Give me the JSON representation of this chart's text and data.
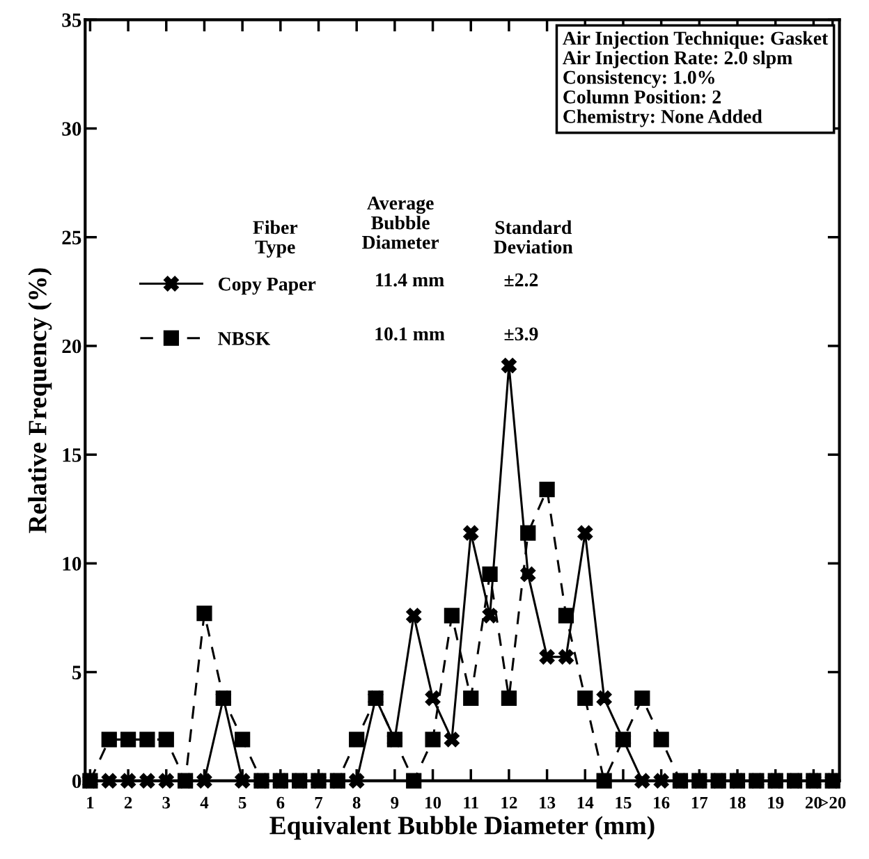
{
  "chart_data": {
    "type": "line",
    "xlabel": "Equivalent Bubble Diameter (mm)",
    "ylabel": "Relative Frequency (%)",
    "x": [
      1,
      1.5,
      2,
      2.5,
      3,
      3.5,
      4,
      4.5,
      5,
      5.5,
      6,
      6.5,
      7,
      7.5,
      8,
      8.5,
      9,
      9.5,
      10,
      10.5,
      11,
      11.5,
      12,
      12.5,
      13,
      13.5,
      14,
      14.5,
      15,
      15.5,
      16,
      16.5,
      17,
      17.5,
      18,
      18.5,
      19,
      19.5,
      20,
      20.5
    ],
    "series": [
      {
        "name": "Copy Paper",
        "color": "#000000",
        "marker": "cross",
        "line_style": "solid",
        "values": [
          0,
          0,
          0,
          0,
          0,
          0,
          0,
          3.8,
          0,
          0,
          0,
          0,
          0,
          0,
          0,
          3.8,
          1.9,
          7.6,
          3.8,
          1.9,
          11.4,
          7.6,
          19.1,
          9.5,
          5.7,
          5.7,
          11.4,
          3.8,
          1.9,
          0,
          0,
          0,
          0,
          0,
          0,
          0,
          0,
          0,
          0,
          0
        ]
      },
      {
        "name": "NBSK",
        "color": "#000000",
        "marker": "square",
        "line_style": "dashed",
        "values": [
          0,
          1.9,
          1.9,
          1.9,
          1.9,
          0,
          7.7,
          3.8,
          1.9,
          0,
          0,
          0,
          0,
          0,
          1.9,
          3.8,
          1.9,
          0,
          1.9,
          7.6,
          3.8,
          9.5,
          3.8,
          11.4,
          13.4,
          7.6,
          3.8,
          0,
          1.9,
          3.8,
          1.9,
          0,
          0,
          0,
          0,
          0,
          0,
          0,
          0,
          0
        ]
      }
    ],
    "xlim": [
      0.87,
      20.68
    ],
    "xticks": [
      1,
      2,
      3,
      4,
      5,
      6,
      7,
      8,
      9,
      10,
      11,
      12,
      13,
      14,
      15,
      16,
      17,
      18,
      19,
      20,
      {
        "value": 20.5,
        "label": ">20"
      }
    ],
    "ylim": [
      0,
      35
    ],
    "yticks": [
      0,
      5,
      10,
      15,
      20,
      25,
      30,
      35
    ],
    "grid": false,
    "legend": "top left",
    "annotations": [
      "Air Injection Technique: Gasket\nAir Injection Rate: 2.0 slpm\nConsistency: 1.0%\nColumn Position: 2\nChemistry: None Added",
      "Fiber\nType",
      "Average\nBubble\nDiameter",
      "Standard\nDeviation",
      "11.4 mm",
      "±2.2",
      "10.1 mm",
      "±3.9"
    ]
  }
}
